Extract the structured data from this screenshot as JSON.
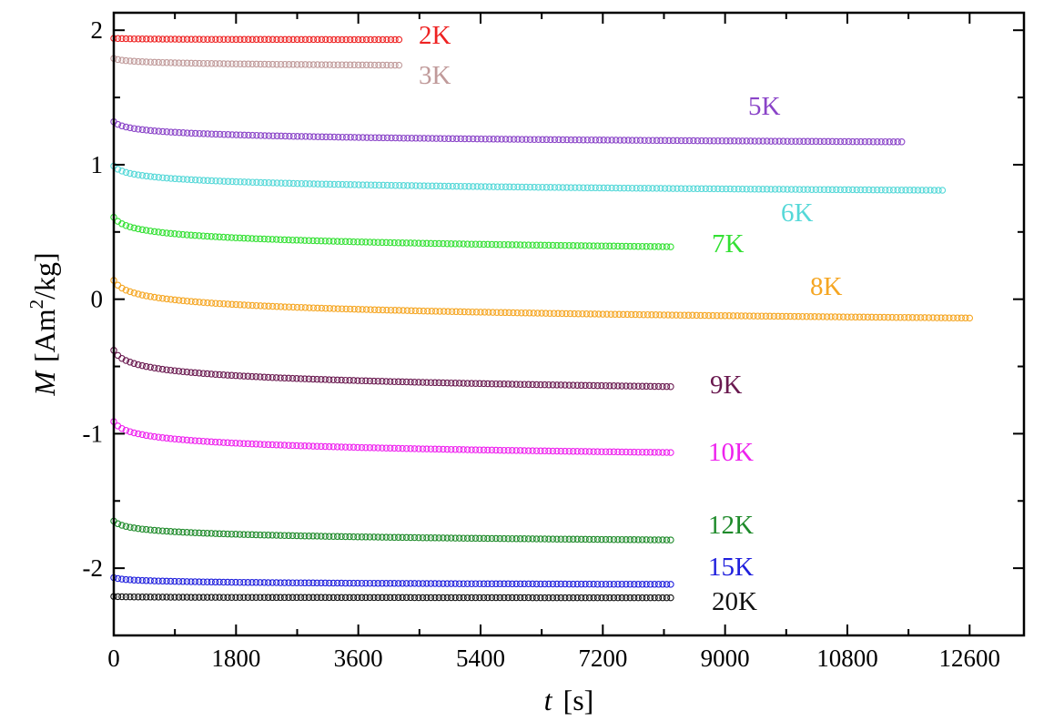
{
  "chart_data": {
    "type": "scatter",
    "xlabel": {
      "italic": "t",
      "rest": "[s]"
    },
    "ylabel": {
      "italic": "M",
      "rest": "[Am",
      "sup": "2",
      "tail": "/kg]"
    },
    "xlim": [
      0,
      13400
    ],
    "ylim": [
      -2.5,
      2.13
    ],
    "xticks": [
      0,
      1800,
      3600,
      5400,
      7200,
      9000,
      10800,
      12600
    ],
    "xtick_labels": [
      "0",
      "1800",
      "3600",
      "5400",
      "7200",
      "9000",
      "10800",
      "12600"
    ],
    "yticks": [
      -2,
      -1,
      0,
      1,
      2
    ],
    "ytick_labels": [
      "-2",
      "-1",
      "0",
      "1",
      "2"
    ],
    "grid": false,
    "series": [
      {
        "name": "2K",
        "color": "#ee2222",
        "t_end": 4200,
        "m_start": 1.94,
        "m_end": 1.93
      },
      {
        "name": "3K",
        "color": "#c09a9a",
        "t_end": 4200,
        "m_start": 1.79,
        "m_end": 1.74
      },
      {
        "name": "5K",
        "color": "#8a44c8",
        "t_end": 11600,
        "m_start": 1.32,
        "m_end": 1.17
      },
      {
        "name": "6K",
        "color": "#55d8d8",
        "t_end": 12200,
        "m_start": 0.99,
        "m_end": 0.81
      },
      {
        "name": "7K",
        "color": "#33e033",
        "t_end": 8200,
        "m_start": 0.61,
        "m_end": 0.39
      },
      {
        "name": "8K",
        "color": "#f5a623",
        "t_end": 12600,
        "m_start": 0.14,
        "m_end": -0.14
      },
      {
        "name": "9K",
        "color": "#6a1a50",
        "t_end": 8200,
        "m_start": -0.38,
        "m_end": -0.65
      },
      {
        "name": "10K",
        "color": "#ee22ee",
        "t_end": 8200,
        "m_start": -0.91,
        "m_end": -1.14
      },
      {
        "name": "12K",
        "color": "#1e8a2a",
        "t_end": 8200,
        "m_start": -1.65,
        "m_end": -1.79
      },
      {
        "name": "15K",
        "color": "#2020dd",
        "t_end": 8200,
        "m_start": -2.07,
        "m_end": -2.12
      },
      {
        "name": "20K",
        "color": "#111111",
        "t_end": 8200,
        "m_start": -2.21,
        "m_end": -2.22
      }
    ]
  }
}
